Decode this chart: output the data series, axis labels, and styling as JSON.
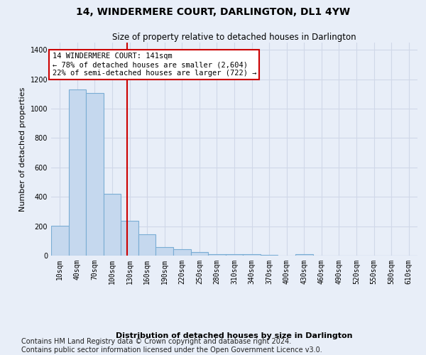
{
  "title": "14, WINDERMERE COURT, DARLINGTON, DL1 4YW",
  "subtitle": "Size of property relative to detached houses in Darlington",
  "xlabel": "Distribution of detached houses by size in Darlington",
  "ylabel": "Number of detached properties",
  "bar_color": "#c5d8ee",
  "bar_edge_color": "#7aadd4",
  "background_color": "#e8eef8",
  "fig_color": "#e8eef8",
  "grid_color": "#d0d8e8",
  "annotation_line_color": "#cc0000",
  "annotation_box_color": "#cc0000",
  "annotation_text": "14 WINDERMERE COURT: 141sqm\n← 78% of detached houses are smaller (2,604)\n22% of semi-detached houses are larger (722) →",
  "property_size": 141,
  "categories": [
    "10sqm",
    "40sqm",
    "70sqm",
    "100sqm",
    "130sqm",
    "160sqm",
    "190sqm",
    "220sqm",
    "250sqm",
    "280sqm",
    "310sqm",
    "340sqm",
    "370sqm",
    "400sqm",
    "430sqm",
    "460sqm",
    "490sqm",
    "520sqm",
    "550sqm",
    "580sqm",
    "610sqm"
  ],
  "values": [
    205,
    1130,
    1105,
    420,
    235,
    145,
    60,
    42,
    25,
    12,
    8,
    8,
    5,
    2,
    12,
    2,
    1,
    0,
    0,
    0,
    0
  ],
  "ylim": [
    0,
    1450
  ],
  "yticks": [
    0,
    200,
    400,
    600,
    800,
    1000,
    1200,
    1400
  ],
  "footer": "Contains HM Land Registry data © Crown copyright and database right 2024.\nContains public sector information licensed under the Open Government Licence v3.0.",
  "footer_fontsize": 7,
  "title_fontsize": 10,
  "subtitle_fontsize": 8.5,
  "xlabel_fontsize": 8,
  "ylabel_fontsize": 8,
  "tick_fontsize": 7,
  "annot_fontsize": 7.5
}
